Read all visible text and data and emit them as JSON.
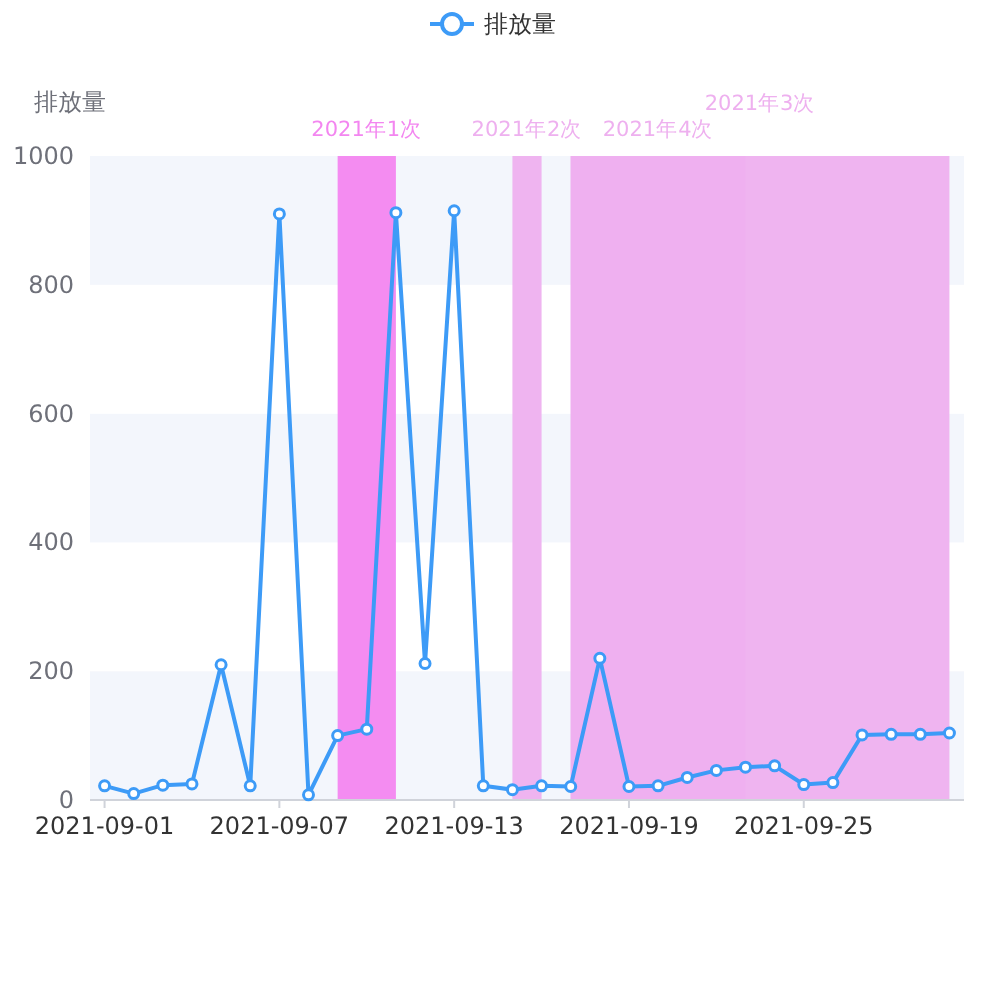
{
  "chart_data": {
    "type": "line",
    "legend": "top",
    "marker": "circle",
    "line_style": "solid",
    "ylabel": "排放量",
    "x": [
      "2021-09-01",
      "2021-09-02",
      "2021-09-03",
      "2021-09-04",
      "2021-09-05",
      "2021-09-06",
      "2021-09-07",
      "2021-09-08",
      "2021-09-09",
      "2021-09-10",
      "2021-09-11",
      "2021-09-12",
      "2021-09-13",
      "2021-09-14",
      "2021-09-15",
      "2021-09-16",
      "2021-09-17",
      "2021-09-18",
      "2021-09-19",
      "2021-09-20",
      "2021-09-21",
      "2021-09-22",
      "2021-09-23",
      "2021-09-24",
      "2021-09-25",
      "2021-09-26",
      "2021-09-27",
      "2021-09-28",
      "2021-09-29",
      "2021-09-30"
    ],
    "series": [
      {
        "name": "排放量",
        "color": "#3d9bf7",
        "values": [
          22,
          10,
          23,
          25,
          210,
          22,
          910,
          8,
          100,
          110,
          912,
          212,
          915,
          22,
          16,
          22,
          21,
          220,
          21,
          22,
          35,
          46,
          51,
          53,
          24,
          27,
          101,
          102,
          102,
          104
        ]
      }
    ],
    "xlim": [
      "2021-08-31T12:00",
      "2021-09-30T12:00"
    ],
    "xticks": [
      "2021-09-01",
      "2021-09-07",
      "2021-09-13",
      "2021-09-19",
      "2021-09-25"
    ],
    "ylim": [
      0,
      1000
    ],
    "yticks": [
      0,
      200,
      400,
      600,
      800,
      1000
    ],
    "bands": [
      {
        "axis": "x",
        "from": "2021-09-09",
        "to": "2021-09-11",
        "label": "2021年1次",
        "color": "#f386f0"
      },
      {
        "axis": "x",
        "from": "2021-09-15",
        "to": "2021-09-16",
        "label": "2021年2次",
        "color": "#eeb0ef"
      },
      {
        "axis": "x",
        "from": "2021-09-17",
        "to": "2021-09-23",
        "label": "2021年4次",
        "color": "#eeb0ef"
      },
      {
        "axis": "x",
        "from": "2021-09-17",
        "to": "2021-09-30",
        "label": "2021年3次",
        "color": "#eeb0ef"
      }
    ]
  }
}
